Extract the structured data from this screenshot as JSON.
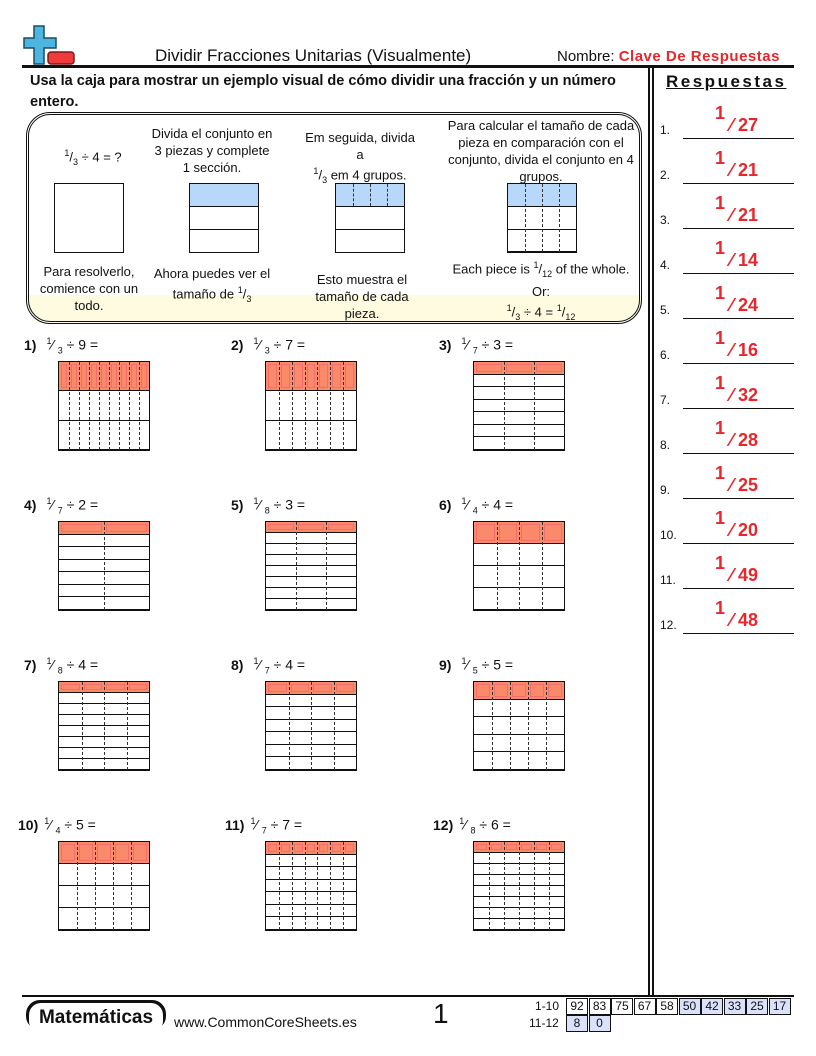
{
  "header": {
    "title": "Dividir Fracciones Unitarias (Visualmente)",
    "name_label": "Nombre:",
    "name_value": "Clave De Respuestas"
  },
  "instructions": "Usa la caja para mostrar un ejemplo visual de cómo dividir una fracción y un número entero.",
  "example": {
    "step1_top": "÷ 4 = ?",
    "step1_bottom": "Para resolverlo, comience con un todo.",
    "step2_top": "Divida el conjunto en 3 piezas y complete 1 sección.",
    "step2_bottom": "Ahora puedes ver el tamaño de",
    "step3_top_a": "Em seguida, divida a",
    "step3_top_b": "em 4 grupos.",
    "step3_bottom": "Esto muestra el tamaño de cada pieza.",
    "step4_top": "Para calcular el tamaño de cada pieza en comparación con el conjunto, divida el conjunto en 4 grupos.",
    "step4_bottom_a": "Each piece is",
    "step4_bottom_b": "of the whole.",
    "step4_or": "Or:",
    "step4_eq": "÷ 4 =",
    "colors": {
      "shade": "#b8d8fb"
    }
  },
  "problems": [
    {
      "label": "1)",
      "den": 3,
      "div": 9
    },
    {
      "label": "2)",
      "den": 3,
      "div": 7
    },
    {
      "label": "3)",
      "den": 7,
      "div": 3
    },
    {
      "label": "4)",
      "den": 7,
      "div": 2
    },
    {
      "label": "5)",
      "den": 8,
      "div": 3
    },
    {
      "label": "6)",
      "den": 4,
      "div": 4
    },
    {
      "label": "7)",
      "den": 8,
      "div": 4
    },
    {
      "label": "8)",
      "den": 7,
      "div": 4
    },
    {
      "label": "9)",
      "den": 5,
      "div": 5
    },
    {
      "label": "10)",
      "den": 4,
      "div": 5
    },
    {
      "label": "11)",
      "den": 7,
      "div": 7
    },
    {
      "label": "12)",
      "den": 8,
      "div": 6
    }
  ],
  "answers": {
    "title": "Respuestas",
    "items": [
      {
        "n": "1.",
        "num": "1",
        "den": "27"
      },
      {
        "n": "2.",
        "num": "1",
        "den": "21"
      },
      {
        "n": "3.",
        "num": "1",
        "den": "21"
      },
      {
        "n": "4.",
        "num": "1",
        "den": "14"
      },
      {
        "n": "5.",
        "num": "1",
        "den": "24"
      },
      {
        "n": "6.",
        "num": "1",
        "den": "16"
      },
      {
        "n": "7.",
        "num": "1",
        "den": "32"
      },
      {
        "n": "8.",
        "num": "1",
        "den": "28"
      },
      {
        "n": "9.",
        "num": "1",
        "den": "25"
      },
      {
        "n": "10.",
        "num": "1",
        "den": "20"
      },
      {
        "n": "11.",
        "num": "1",
        "den": "49"
      },
      {
        "n": "12.",
        "num": "1",
        "den": "48"
      }
    ]
  },
  "footer": {
    "brand": "Matemáticas",
    "site": "www.CommonCoreSheets.es",
    "page": "1",
    "scores": [
      {
        "label": "1-10",
        "values": [
          "92",
          "83",
          "75",
          "67",
          "58",
          "50",
          "42",
          "33",
          "25",
          "17"
        ]
      },
      {
        "label": "11-12",
        "values": [
          "8",
          "0"
        ]
      }
    ]
  },
  "colors": {
    "accent": "#e8262b",
    "shade": "#fb8a6a",
    "score_blue": "#d9e1fb"
  }
}
